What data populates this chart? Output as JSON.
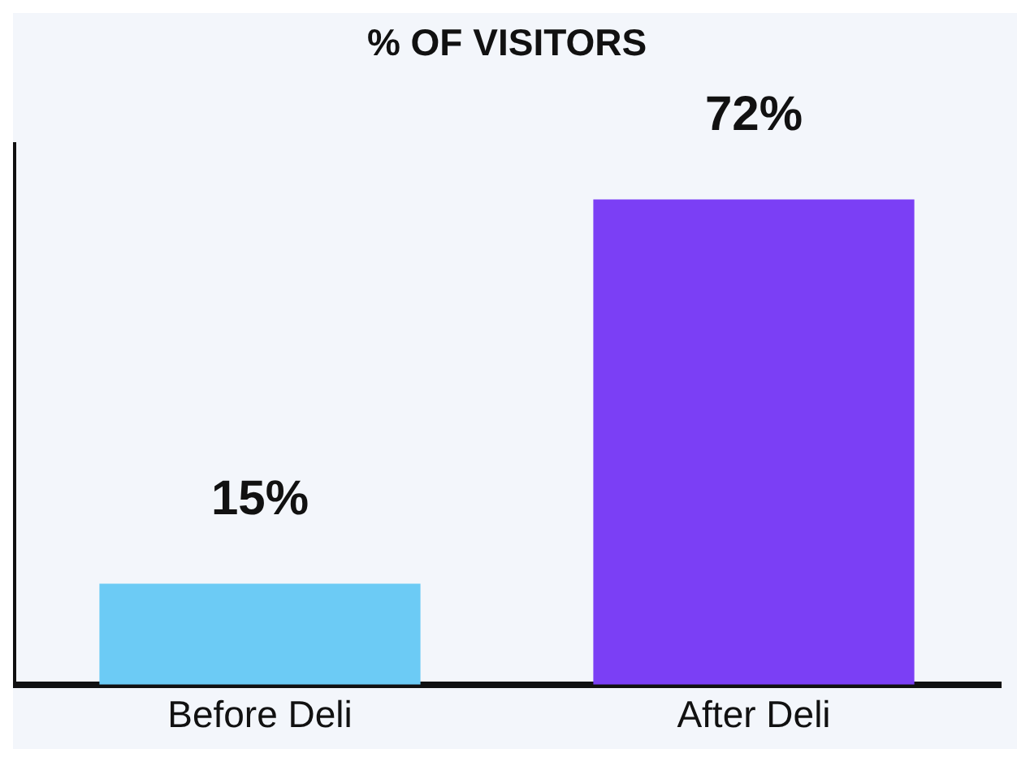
{
  "chart_data": {
    "type": "bar",
    "title": "% OF VISITORS",
    "categories": [
      "Before Deli",
      "After Deli"
    ],
    "values": [
      15,
      72
    ],
    "colors": [
      "#6ccbf5",
      "#7b3ff5"
    ],
    "value_labels": [
      "15%",
      "72%"
    ],
    "grid": false,
    "legend": false
  }
}
